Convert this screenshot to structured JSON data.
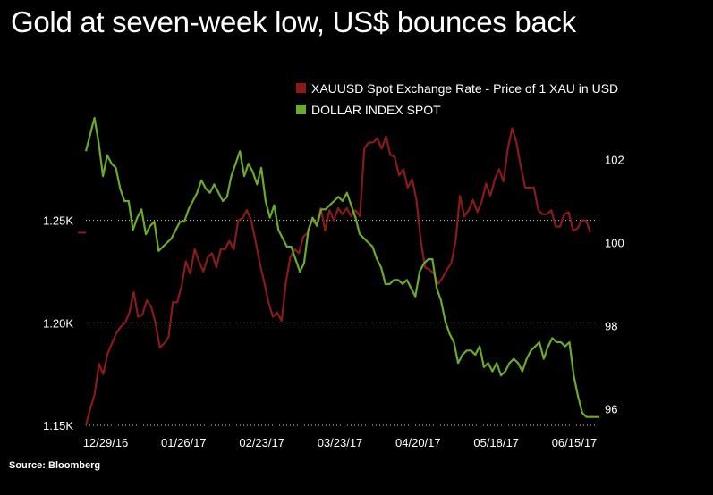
{
  "title": "Gold at seven-week low, US$ bounces back",
  "source": "Source: Bloomberg",
  "chart_data": {
    "type": "line",
    "title": "Gold at seven-week low, US$ bounces back",
    "x_tick_labels": [
      "12/29/16",
      "01/26/17",
      "02/23/17",
      "03/23/17",
      "04/20/17",
      "05/18/17",
      "06/15/17"
    ],
    "y_left": {
      "ticks": [
        1150,
        1200,
        1250
      ],
      "tick_labels": [
        "1.15K",
        "1.20K",
        "1.25K"
      ],
      "range": [
        1150,
        1300
      ]
    },
    "y_right": {
      "ticks": [
        96,
        98,
        100,
        102
      ],
      "tick_labels": [
        "96",
        "98",
        "100",
        "102"
      ],
      "range": [
        95.6,
        103.0
      ]
    },
    "gridlines": "dotted at left-axis ticks",
    "colors": {
      "gold": "#8b1a1a",
      "dollar": "#6aaa2c",
      "background": "#000000",
      "grid": "#cccccc"
    },
    "series": [
      {
        "name": "XAUUSD Spot Exchange Rate - Price of 1 XAU in USD",
        "axis": "left",
        "values": [
          1150,
          1158,
          1165,
          1180,
          1175,
          1185,
          1190,
          1195,
          1198,
          1200,
          1205,
          1215,
          1203,
          1204,
          1211,
          1208,
          1200,
          1188,
          1190,
          1193,
          1210,
          1210,
          1218,
          1230,
          1224,
          1236,
          1230,
          1225,
          1232,
          1234,
          1227,
          1236,
          1236,
          1240,
          1236,
          1250,
          1251,
          1255,
          1250,
          1240,
          1229,
          1220,
          1210,
          1203,
          1205,
          1201,
          1220,
          1232,
          1236,
          1234,
          1242,
          1244,
          1250,
          1248,
          1256,
          1245,
          1255,
          1250,
          1256,
          1253,
          1256,
          1252,
          1255,
          1252,
          1285,
          1288,
          1288,
          1290,
          1285,
          1291,
          1282,
          1281,
          1272,
          1275,
          1266,
          1270,
          1260,
          1240,
          1227,
          1226,
          1224,
          1219,
          1222,
          1226,
          1229,
          1240,
          1262,
          1252,
          1255,
          1260,
          1254,
          1259,
          1268,
          1262,
          1270,
          1275,
          1269,
          1285,
          1295,
          1288,
          1276,
          1266,
          1266,
          1266,
          1255,
          1253,
          1253,
          1255,
          1247,
          1247,
          1253,
          1254,
          1245,
          1246,
          1250,
          1250,
          1244
        ]
      },
      {
        "name": "DOLLAR INDEX SPOT",
        "axis": "right",
        "values": [
          102.2,
          102.6,
          103.0,
          102.4,
          101.6,
          102.1,
          101.9,
          101.8,
          101.3,
          101.0,
          101.0,
          100.3,
          100.6,
          100.8,
          100.2,
          100.4,
          100.5,
          99.8,
          99.9,
          100.0,
          100.1,
          100.3,
          100.5,
          100.5,
          100.8,
          101.0,
          101.2,
          101.5,
          101.3,
          101.2,
          101.4,
          101.2,
          101.0,
          101.1,
          101.6,
          101.9,
          102.2,
          101.6,
          101.9,
          101.7,
          101.4,
          101.8,
          101.0,
          100.6,
          100.9,
          100.3,
          100.1,
          99.9,
          99.9,
          99.6,
          99.3,
          99.5,
          100.3,
          100.6,
          100.4,
          100.8,
          100.8,
          100.9,
          101.0,
          101.1,
          101.0,
          101.2,
          100.9,
          100.6,
          100.2,
          100.1,
          100.0,
          99.9,
          99.6,
          99.4,
          99.0,
          99.0,
          99.1,
          99.1,
          99.0,
          99.1,
          98.9,
          98.7,
          99.3,
          99.5,
          99.6,
          99.6,
          98.9,
          98.6,
          98.1,
          97.8,
          97.6,
          97.1,
          97.3,
          97.4,
          97.4,
          97.3,
          97.5,
          97.0,
          97.1,
          96.9,
          97.1,
          96.8,
          96.9,
          97.1,
          97.2,
          97.1,
          96.9,
          97.2,
          97.4,
          97.5,
          97.6,
          97.2,
          97.5,
          97.7,
          97.6,
          97.6,
          97.5,
          97.6,
          96.8,
          96.3,
          95.9,
          95.8,
          95.8,
          95.8,
          95.8
        ]
      }
    ]
  }
}
